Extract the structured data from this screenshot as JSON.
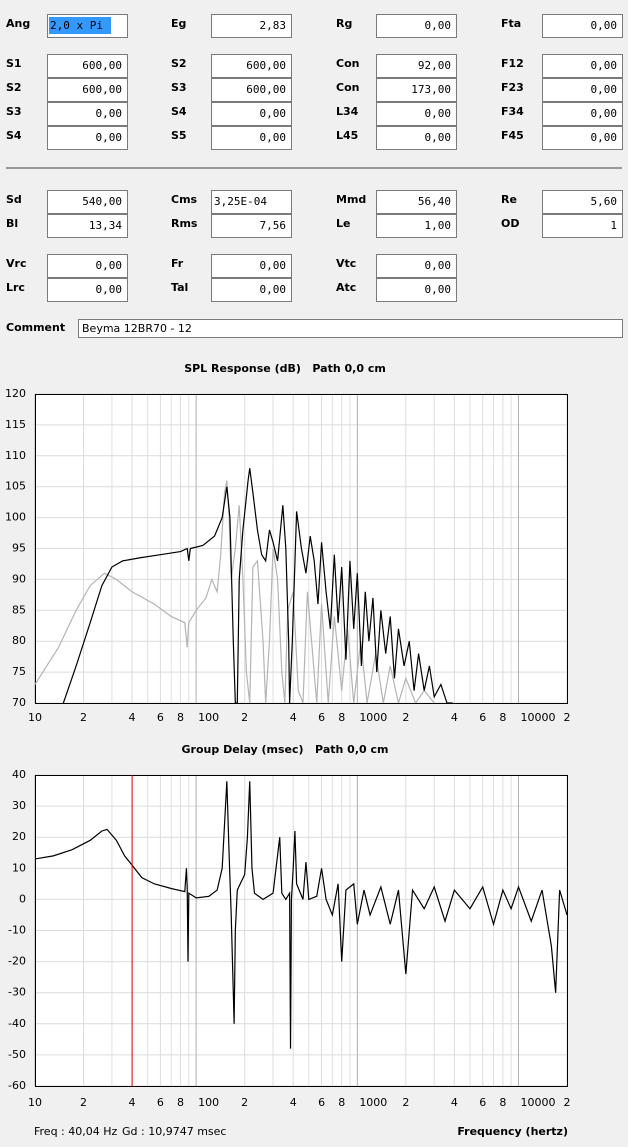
{
  "form": {
    "groups": [
      {
        "rows": [
          [
            {
              "label": "Ang",
              "value": "2,0 x Pi",
              "selected": true,
              "align": "left"
            },
            {
              "label": "Eg",
              "value": "2,83"
            },
            {
              "label": "Rg",
              "value": "0,00"
            },
            {
              "label": "Fta",
              "value": "0,00",
              "disabled": true
            }
          ],
          [
            {
              "label": "S1",
              "value": "600,00"
            },
            {
              "label": "S2",
              "value": "600,00"
            },
            {
              "label": "Con",
              "value": "92,00"
            },
            {
              "label": "F12",
              "value": "0,00",
              "disabled": true
            }
          ],
          [
            {
              "label": "S2",
              "value": "600,00"
            },
            {
              "label": "S3",
              "value": "600,00"
            },
            {
              "label": "Con",
              "value": "173,00"
            },
            {
              "label": "F23",
              "value": "0,00",
              "disabled": true
            }
          ],
          [
            {
              "label": "S3",
              "value": "0,00"
            },
            {
              "label": "S4",
              "value": "0,00"
            },
            {
              "label": "L34",
              "value": "0,00"
            },
            {
              "label": "F34",
              "value": "0,00",
              "disabled": true
            }
          ],
          [
            {
              "label": "S4",
              "value": "0,00"
            },
            {
              "label": "S5",
              "value": "0,00"
            },
            {
              "label": "L45",
              "value": "0,00"
            },
            {
              "label": "F45",
              "value": "0,00",
              "disabled": true
            }
          ]
        ]
      },
      {
        "rows": [
          [
            {
              "label": "Sd",
              "value": "540,00"
            },
            {
              "label": "Cms",
              "value": "3,25E-04",
              "align": "left"
            },
            {
              "label": "Mmd",
              "value": "56,40"
            },
            {
              "label": "Re",
              "value": "5,60"
            }
          ],
          [
            {
              "label": "Bl",
              "value": "13,34"
            },
            {
              "label": "Rms",
              "value": "7,56"
            },
            {
              "label": "Le",
              "value": "1,00"
            },
            {
              "label": "OD",
              "value": "1",
              "disabled": true,
              "label_color": "#e00000"
            }
          ]
        ]
      },
      {
        "rows": [
          [
            {
              "label": "Vrc",
              "value": "0,00"
            },
            {
              "label": "Fr",
              "value": "0,00"
            },
            {
              "label": "Vtc",
              "value": "0,00"
            }
          ],
          [
            {
              "label": "Lrc",
              "value": "0,00"
            },
            {
              "label": "Tal",
              "value": "0,00"
            },
            {
              "label": "Atc",
              "value": "0,00"
            }
          ]
        ]
      }
    ],
    "comment": {
      "label": "Comment",
      "value": "Beyma 12BR70 - 12"
    }
  },
  "chart_data": [
    {
      "type": "line",
      "title": "SPL Response (dB)   Path 0,0 cm",
      "xlog": true,
      "grid": true,
      "xlim": [
        10,
        20000
      ],
      "xticks": [
        10,
        {
          "value": 20,
          "label": "2"
        },
        {
          "value": 40,
          "label": "4"
        },
        {
          "value": 60,
          "label": "6"
        },
        {
          "value": 80,
          "label": "8"
        },
        100,
        {
          "value": 200,
          "label": "2"
        },
        {
          "value": 400,
          "label": "4"
        },
        {
          "value": 600,
          "label": "6"
        },
        {
          "value": 800,
          "label": "8"
        },
        1000,
        {
          "value": 2000,
          "label": "2"
        },
        {
          "value": 4000,
          "label": "4"
        },
        {
          "value": 6000,
          "label": "6"
        },
        {
          "value": 8000,
          "label": "8"
        },
        10000,
        {
          "value": 20000,
          "label": "2"
        }
      ],
      "xminor": [
        30,
        50,
        70,
        90,
        300,
        500,
        700,
        900,
        3000,
        5000,
        7000,
        9000
      ],
      "ylim": [
        70,
        120
      ],
      "yticks": [
        70,
        75,
        80,
        85,
        90,
        95,
        100,
        105,
        110,
        115,
        120
      ],
      "series": [
        {
          "color": "#b4b4b4",
          "x": [
            10,
            14,
            18,
            22,
            27,
            32,
            40,
            55,
            70,
            85,
            88,
            90,
            100,
            115,
            125,
            135,
            142,
            150,
            155,
            160,
            165,
            175,
            185,
            195,
            205,
            215,
            225,
            240,
            260,
            270,
            285,
            300,
            320,
            340,
            355,
            370,
            400,
            430,
            460,
            490,
            520,
            560,
            600,
            660,
            720,
            800,
            870,
            950,
            1050,
            1150,
            1300,
            1450,
            1600,
            1800,
            2000,
            2300,
            2600,
            3000
          ],
          "values": [
            73,
            79,
            85,
            89,
            91,
            90,
            88,
            86,
            84,
            83,
            79,
            83,
            85,
            87,
            90,
            88,
            94,
            104,
            106,
            100,
            90,
            95,
            102,
            90,
            75,
            70,
            92,
            93,
            80,
            70,
            80,
            95,
            90,
            75,
            70,
            85,
            88,
            72,
            70,
            88,
            80,
            70,
            86,
            70,
            84,
            72,
            82,
            70,
            80,
            70,
            78,
            70,
            76,
            70,
            74,
            70,
            72,
            70
          ]
        },
        {
          "color": "#000000",
          "x": [
            15,
            18,
            22,
            26,
            30,
            35,
            45,
            60,
            80,
            88,
            90,
            92,
            110,
            130,
            145,
            155,
            162,
            170,
            175,
            180,
            185,
            195,
            210,
            215,
            225,
            240,
            255,
            270,
            285,
            300,
            320,
            345,
            360,
            375,
            380,
            395,
            420,
            450,
            480,
            510,
            540,
            570,
            600,
            640,
            680,
            720,
            760,
            800,
            850,
            900,
            950,
            1000,
            1060,
            1120,
            1180,
            1250,
            1320,
            1400,
            1500,
            1600,
            1700,
            1800,
            1950,
            2100,
            2250,
            2400,
            2600,
            2800,
            3000,
            3300,
            3600,
            3900
          ],
          "values": [
            70,
            76,
            83,
            89,
            92,
            93,
            93.5,
            94,
            94.5,
            95,
            93,
            95,
            95.5,
            97,
            100,
            105,
            100,
            80,
            70,
            70,
            90,
            98,
            106,
            108,
            104,
            98,
            94,
            93,
            98,
            96,
            93,
            102,
            95,
            80,
            70,
            80,
            101,
            95,
            91,
            97,
            93,
            86,
            96,
            88,
            82,
            94,
            83,
            92,
            77,
            93,
            82,
            91,
            76,
            88,
            80,
            87,
            75,
            85,
            78,
            84,
            74,
            82,
            76,
            80,
            72,
            78,
            72,
            76,
            71,
            73,
            70,
            70
          ]
        }
      ]
    },
    {
      "type": "line",
      "title": "Group Delay (msec)   Path 0,0 cm",
      "xlog": true,
      "grid": true,
      "xlim": [
        10,
        20000
      ],
      "xticks": [
        10,
        {
          "value": 20,
          "label": "2"
        },
        {
          "value": 40,
          "label": "4"
        },
        {
          "value": 60,
          "label": "6"
        },
        {
          "value": 80,
          "label": "8"
        },
        100,
        {
          "value": 200,
          "label": "2"
        },
        {
          "value": 400,
          "label": "4"
        },
        {
          "value": 600,
          "label": "6"
        },
        {
          "value": 800,
          "label": "8"
        },
        1000,
        {
          "value": 2000,
          "label": "2"
        },
        {
          "value": 4000,
          "label": "4"
        },
        {
          "value": 6000,
          "label": "6"
        },
        {
          "value": 8000,
          "label": "8"
        },
        10000,
        {
          "value": 20000,
          "label": "2"
        }
      ],
      "xminor": [
        30,
        50,
        70,
        90,
        300,
        500,
        700,
        900,
        3000,
        5000,
        7000,
        9000
      ],
      "ylim": [
        -60,
        40
      ],
      "yticks": [
        -60,
        -50,
        -40,
        -30,
        -20,
        -10,
        0,
        10,
        20,
        30,
        40
      ],
      "cursor": 40.04,
      "cursor_color": "#e00000",
      "status": [
        "Freq : 40,04 Hz",
        "Gd : 10,9747 msec"
      ],
      "status_color": "#e00000",
      "xlabel": "Frequency (hertz)",
      "series": [
        {
          "color": "#000000",
          "x": [
            10,
            13,
            17,
            22,
            26,
            28,
            32,
            36,
            40.04,
            46,
            55,
            70,
            85,
            87,
            88,
            89,
            90,
            100,
            120,
            135,
            145,
            155,
            160,
            165,
            170,
            172,
            175,
            180,
            200,
            208,
            215,
            222,
            230,
            260,
            300,
            330,
            340,
            360,
            380,
            385,
            390,
            400,
            410,
            420,
            460,
            480,
            500,
            560,
            600,
            640,
            700,
            760,
            800,
            850,
            950,
            1000,
            1100,
            1200,
            1400,
            1600,
            1800,
            2000,
            2200,
            2600,
            3000,
            3500,
            4000,
            5000,
            6000,
            7000,
            8000,
            9000,
            10000,
            12000,
            14000,
            16000,
            17000,
            18000,
            20000
          ],
          "values": [
            13,
            14,
            16,
            19,
            22,
            22.5,
            19,
            14,
            10.97,
            7,
            5,
            3.5,
            2.5,
            10,
            4,
            -20,
            2,
            0.5,
            1,
            3,
            10,
            38,
            15,
            -5,
            -30,
            -40,
            -10,
            3,
            8,
            20,
            38,
            10,
            2,
            0,
            2,
            20,
            2,
            0,
            2,
            -48,
            0,
            10,
            22,
            5,
            0,
            12,
            0,
            1,
            10,
            0,
            -5,
            5,
            -20,
            3,
            5,
            -8,
            3,
            -5,
            4,
            -8,
            3,
            -24,
            3,
            -3,
            4,
            -7,
            3,
            -3,
            4,
            -8,
            3,
            -3,
            4,
            -7,
            3,
            -15,
            -30,
            3,
            -5
          ]
        }
      ]
    }
  ]
}
